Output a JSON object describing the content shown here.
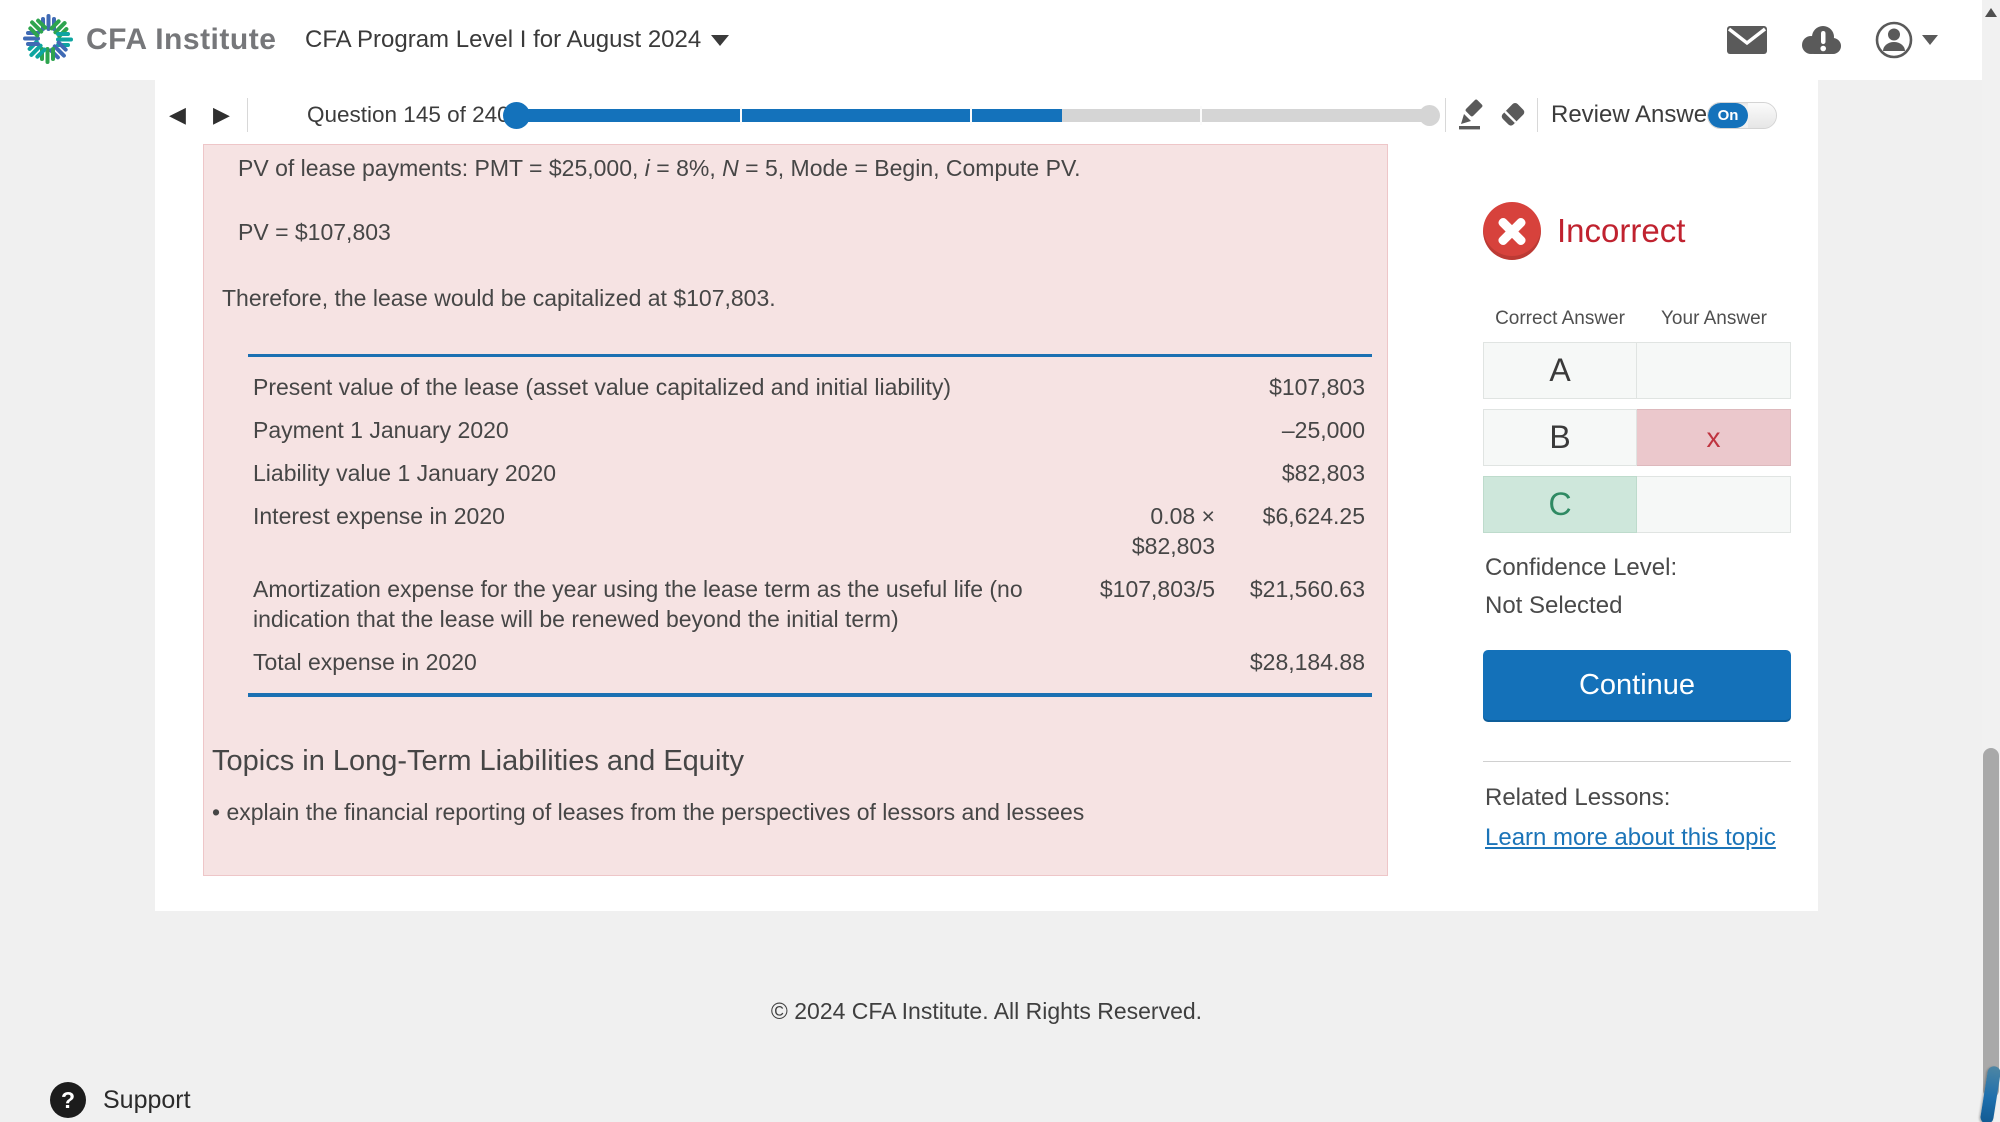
{
  "colors": {
    "accent_blue": "#1472bb",
    "table_border_blue": "#1b70b2",
    "incorrect_red": "#c0222f",
    "incorrect_icon_red": "#d7423c",
    "chosen_cell_pink": "#ebc8cc",
    "correct_cell_green": "#cee7db",
    "panel_pink": "#f6e3e3",
    "link_blue": "#1b74b8"
  },
  "icons": {
    "brand": "cfa-pinwheel",
    "mail": "envelope",
    "alerts": "cloud-exclamation",
    "account": "person-circle",
    "prev": "left-triangle",
    "next": "right-triangle",
    "highlighter": "marker-pen",
    "eraser": "eraser-diamond",
    "status": "x-circle",
    "support": "question-circle"
  },
  "header": {
    "brand": "CFA Institute",
    "program_title": "CFA Program Level I for August 2024"
  },
  "nav": {
    "question_label": "Question 145 of 240",
    "progress_percent": 60,
    "review_label": "Review Answer",
    "toggle_state": "On"
  },
  "explanation": {
    "line1_parts": [
      "PV of lease payments: PMT = $25,000, ",
      "i",
      " = 8%, ",
      "N",
      " = 5, Mode = Begin, Compute PV."
    ],
    "line2": "PV = $107,803",
    "line3": "Therefore, the lease would be capitalized at $107,803.",
    "table": {
      "rows": [
        {
          "label": "Present value of the lease (asset value capitalized and initial liability)",
          "calc": "",
          "value": "$107,803"
        },
        {
          "label": "Payment 1 January 2020",
          "calc": "",
          "value": "–25,000"
        },
        {
          "label": "Liability value 1 January 2020",
          "calc": "",
          "value": "$82,803"
        },
        {
          "label": "Interest expense in 2020",
          "calc": "0.08 × $82,803",
          "value": "$6,624.25"
        },
        {
          "label": "Amortization expense for the year using the lease term as the useful life (no indication that the lease will be renewed beyond the initial term)",
          "calc": "$107,803/5",
          "value": "$21,560.63"
        },
        {
          "label": "Total expense in 2020",
          "calc": "",
          "value": "$28,184.88"
        }
      ]
    },
    "topics_heading": "Topics in Long-Term Liabilities and Equity",
    "topics_bullet": "• explain the financial reporting of leases from the perspectives of lessors and lessees"
  },
  "result": {
    "status": "Incorrect",
    "col_correct": "Correct Answer",
    "col_your": "Your Answer",
    "options": [
      {
        "letter": "A",
        "mark": ""
      },
      {
        "letter": "B",
        "mark": "x"
      },
      {
        "letter": "C",
        "mark": ""
      }
    ],
    "correct_letter": "C",
    "selected_letter": "B",
    "confidence_label": "Confidence Level:",
    "confidence_value": "Not Selected",
    "continue_label": "Continue",
    "related_label": "Related Lessons:",
    "related_link": "Learn more about this topic"
  },
  "footer": {
    "copyright": "© 2024 CFA Institute. All Rights Reserved.",
    "support": "Support"
  }
}
